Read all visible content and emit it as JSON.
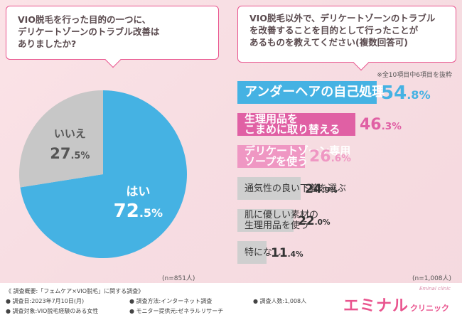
{
  "left_question": {
    "lines": [
      "VIO脱毛を行った目的の一つに、",
      "デリケートゾーンのトラブル改善は",
      "ありましたか?"
    ]
  },
  "right_question": {
    "lines": [
      "VIO脱毛以外で、デリケートゾーンのトラブル",
      "を改善することを目的として行ったことが",
      "あるものを教えてください(複数回答可)"
    ]
  },
  "right_note": "※全10項目中6項目を抜粋",
  "left_n": "(n=851人)",
  "right_n": "(n=1,008人)",
  "chart_data": [
    {
      "type": "pie",
      "title": "VIO脱毛を行った目的の一つに、デリケートゾーンのトラブル改善はありましたか?",
      "slices": [
        {
          "label": "はい",
          "value": 72.5,
          "display": "72.5%",
          "color": "#45b2e3"
        },
        {
          "label": "いいえ",
          "value": 27.5,
          "display": "27.5%",
          "color": "#c7c7c7"
        }
      ]
    },
    {
      "type": "bar",
      "orientation": "horizontal",
      "title": "VIO脱毛以外で、デリケートゾーンのトラブルを改善することを目的として行ったことがあるものを教えてください(複数回答可)",
      "categories": [
        "アンダーヘアの自己処理",
        "生理用品をこまめに取り替える",
        "デリケートゾーン専用ソープを使う",
        "通気性の良い下着を選ぶ",
        "肌に優しい素材の生理用品を使う",
        "特になし"
      ],
      "label_lines": [
        [
          "アンダーヘアの自己処理"
        ],
        [
          "生理用品を",
          "こまめに取り替える"
        ],
        [
          "デリケートゾーン専用",
          "ソープを使う"
        ],
        [
          "通気性の良い下着を選ぶ"
        ],
        [
          "肌に優しい素材の",
          "生理用品を使う"
        ],
        [
          "特になし"
        ]
      ],
      "values": [
        54.8,
        46.3,
        26.6,
        24.9,
        22.0,
        11.4
      ],
      "display_values": [
        "54.8%",
        "46.3%",
        "26.6%",
        "24.9%",
        "22.0%",
        "11.4%"
      ],
      "bar_colors": [
        "#45b2e3",
        "#e060a4",
        "#ef97c3",
        "#cfcfcf",
        "#cfcfcf",
        "#cfcfcf"
      ],
      "value_colors": [
        "#45b2e3",
        "#e060a4",
        "#ef97c3",
        "#333333",
        "#333333",
        "#333333"
      ],
      "xlim": [
        0,
        54.8
      ]
    }
  ],
  "footer": {
    "survey_title": "《 調査概要:「フェムケア×VIO脱毛」に関する調査》",
    "date": "● 調査日:2023年7月10日(月)",
    "method": "● 調査方法:インターネット調査",
    "count": "● 調査人数:1,008人",
    "target": "● 調査対象:VIO脱毛経験のある女性",
    "provider": "● モニター提供元:ゼネラルリサーチ"
  },
  "brand": {
    "name": "エミナル",
    "sub": "クリニック",
    "en": "Eminal clinic"
  }
}
